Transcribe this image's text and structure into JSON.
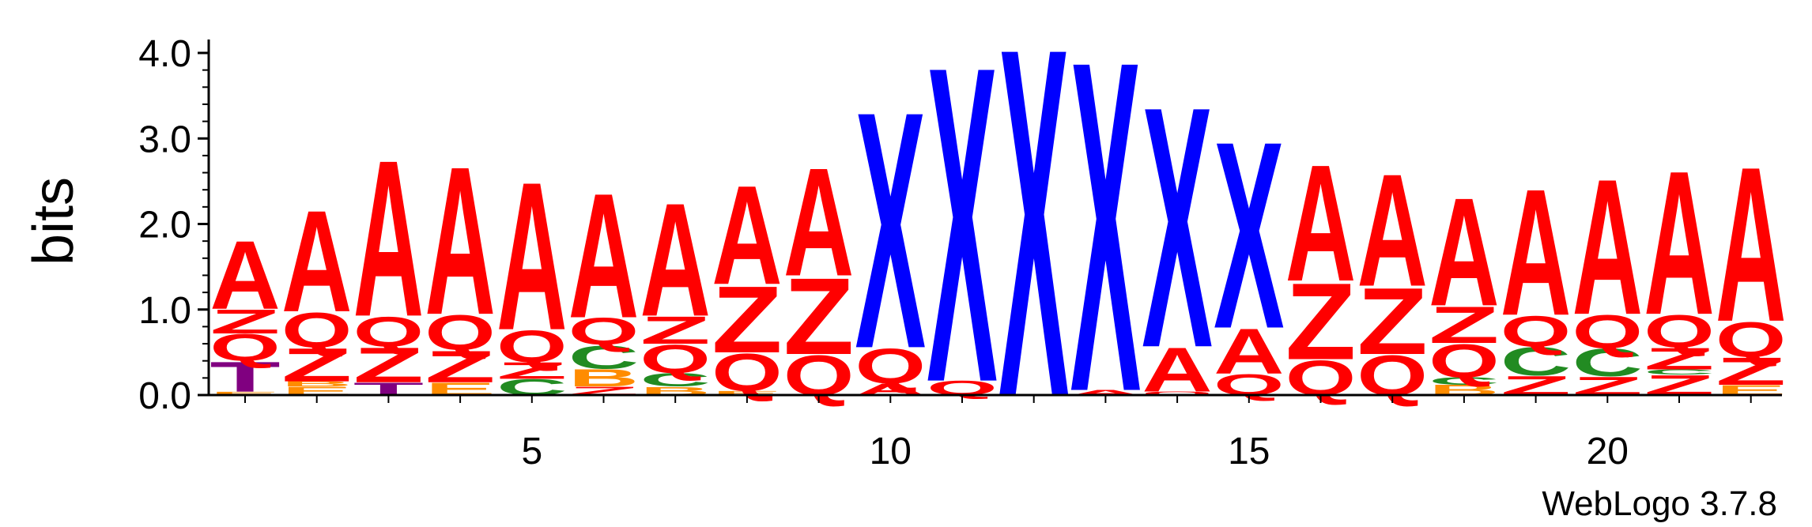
{
  "chart_data": {
    "type": "sequence-logo",
    "ylabel": "bits",
    "ylim": [
      0,
      4.0
    ],
    "yticks": [
      "0.0",
      "1.0",
      "2.0",
      "3.0",
      "4.0"
    ],
    "xticks": [
      "5",
      "10",
      "15",
      "20"
    ],
    "positions": [
      1,
      2,
      3,
      4,
      5,
      6,
      7,
      8,
      9,
      10,
      11,
      12,
      13,
      14,
      15,
      16,
      17,
      18,
      19,
      20,
      21,
      22
    ],
    "colors": {
      "A": "#ff0000",
      "Z": "#ff0000",
      "Q": "#ff0000",
      "X": "#0000ff",
      "C": "#228b22",
      "B": "#ff8c00",
      "T": "#800080",
      "E": "#ff8c00"
    },
    "columns": [
      [
        {
          "l": "E",
          "h": 0.04
        },
        {
          "l": "T",
          "h": 0.36
        },
        {
          "l": "Q",
          "h": 0.32
        },
        {
          "l": "Z",
          "h": 0.29
        },
        {
          "l": "A",
          "h": 0.82
        }
      ],
      [
        {
          "l": "E",
          "h": 0.1
        },
        {
          "l": "B",
          "h": 0.06
        },
        {
          "l": "Z",
          "h": 0.4
        },
        {
          "l": "Q",
          "h": 0.42
        },
        {
          "l": "A",
          "h": 1.22
        }
      ],
      [
        {
          "l": "T",
          "h": 0.15
        },
        {
          "l": "Z",
          "h": 0.42
        },
        {
          "l": "Q",
          "h": 0.36
        },
        {
          "l": "A",
          "h": 1.88
        }
      ],
      [
        {
          "l": "E",
          "h": 0.15
        },
        {
          "l": "Z",
          "h": 0.38
        },
        {
          "l": "Q",
          "h": 0.42
        },
        {
          "l": "A",
          "h": 1.78
        }
      ],
      [
        {
          "l": "C",
          "h": 0.19
        },
        {
          "l": "Z",
          "h": 0.2
        },
        {
          "l": "Q",
          "h": 0.38
        },
        {
          "l": "A",
          "h": 1.78
        }
      ],
      [
        {
          "l": "Z",
          "h": 0.1
        },
        {
          "l": "B",
          "h": 0.21
        },
        {
          "l": "C",
          "h": 0.28
        },
        {
          "l": "Q",
          "h": 0.32
        },
        {
          "l": "A",
          "h": 1.5
        }
      ],
      [
        {
          "l": "B",
          "h": 0.1
        },
        {
          "l": "C",
          "h": 0.16
        },
        {
          "l": "Q",
          "h": 0.34
        },
        {
          "l": "Z",
          "h": 0.33
        },
        {
          "l": "A",
          "h": 1.36
        }
      ],
      [
        {
          "l": "E",
          "h": 0.05
        },
        {
          "l": "Q",
          "h": 0.45
        },
        {
          "l": "Z",
          "h": 0.8
        },
        {
          "l": "A",
          "h": 1.19
        }
      ],
      [
        {
          "l": "Q",
          "h": 0.48
        },
        {
          "l": "Z",
          "h": 0.92
        },
        {
          "l": "A",
          "h": 1.3
        }
      ],
      [
        {
          "l": "A",
          "h": 0.14
        },
        {
          "l": "Q",
          "h": 0.42
        },
        {
          "l": "X",
          "h": 2.85
        }
      ],
      [
        {
          "l": "Q",
          "h": 0.17
        },
        {
          "l": "X",
          "h": 3.8
        }
      ],
      [
        {
          "l": "X",
          "h": 4.2
        }
      ],
      [
        {
          "l": "A",
          "h": 0.06
        },
        {
          "l": "X",
          "h": 3.98
        }
      ],
      [
        {
          "l": "Q",
          "h": 0.04
        },
        {
          "l": "A",
          "h": 0.53
        },
        {
          "l": "X",
          "h": 2.9
        }
      ],
      [
        {
          "l": "Q",
          "h": 0.25
        },
        {
          "l": "A",
          "h": 0.54
        },
        {
          "l": "X",
          "h": 2.25
        }
      ],
      [
        {
          "l": "Q",
          "h": 0.42
        },
        {
          "l": "Z",
          "h": 0.92
        },
        {
          "l": "A",
          "h": 1.4
        }
      ],
      [
        {
          "l": "Q",
          "h": 0.48
        },
        {
          "l": "Z",
          "h": 0.8
        },
        {
          "l": "A",
          "h": 1.35
        }
      ],
      [
        {
          "l": "B",
          "h": 0.12
        },
        {
          "l": "C",
          "h": 0.09
        },
        {
          "l": "Q",
          "h": 0.4
        },
        {
          "l": "Z",
          "h": 0.44
        },
        {
          "l": "A",
          "h": 1.3
        }
      ],
      [
        {
          "l": "Z",
          "h": 0.23
        },
        {
          "l": "C",
          "h": 0.34
        },
        {
          "l": "Q",
          "h": 0.37
        },
        {
          "l": "A",
          "h": 1.52
        }
      ],
      [
        {
          "l": "Z",
          "h": 0.22
        },
        {
          "l": "C",
          "h": 0.33
        },
        {
          "l": "Q",
          "h": 0.4
        },
        {
          "l": "A",
          "h": 1.63
        }
      ],
      [
        {
          "l": "Z",
          "h": 0.24
        },
        {
          "l": "C",
          "h": 0.06
        },
        {
          "l": "Z",
          "h": 0.26
        },
        {
          "l": "Q",
          "h": 0.39
        },
        {
          "l": "A",
          "h": 1.73
        }
      ],
      [
        {
          "l": "E",
          "h": 0.12
        },
        {
          "l": "Z",
          "h": 0.33
        },
        {
          "l": "Q",
          "h": 0.42
        },
        {
          "l": "A",
          "h": 1.86
        }
      ]
    ]
  },
  "credit": "WebLogo 3.7.8"
}
